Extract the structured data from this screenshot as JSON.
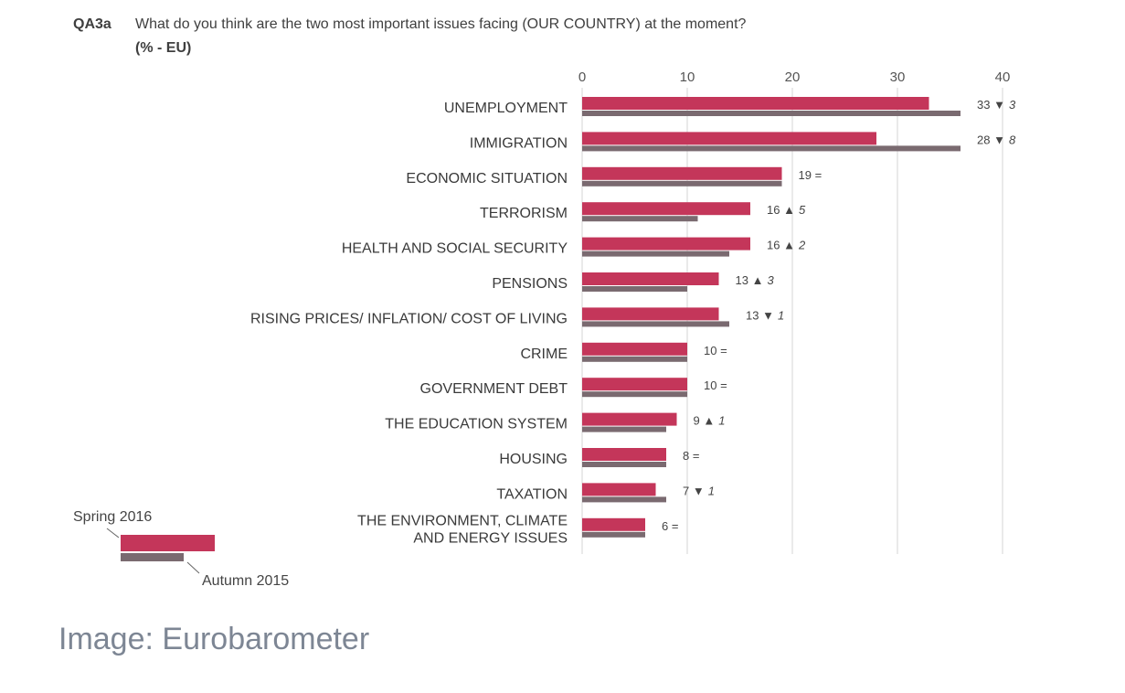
{
  "header": {
    "code": "QA3a",
    "question": "What do you think are the two most important issues facing (OUR COUNTRY) at the moment?",
    "subtitle": "(% - EU)"
  },
  "caption": "Image: Eurobarometer",
  "colors": {
    "spring": "#c4365a",
    "autumn": "#7a6a70",
    "grid": "#d6d6d6"
  },
  "legend": {
    "spring_label": "Spring 2016",
    "autumn_label": "Autumn 2015"
  },
  "chart_data": {
    "type": "bar",
    "orientation": "horizontal",
    "xlim": [
      0,
      40
    ],
    "xticks": [
      0,
      10,
      20,
      30,
      40
    ],
    "grid": true,
    "legend_position": "bottom-left",
    "categories": [
      [
        "UNEMPLOYMENT"
      ],
      [
        "IMMIGRATION"
      ],
      [
        "ECONOMIC SITUATION"
      ],
      [
        "TERRORISM"
      ],
      [
        "HEALTH AND SOCIAL SECURITY"
      ],
      [
        "PENSIONS"
      ],
      [
        "RISING PRICES/ INFLATION/ COST OF LIVING"
      ],
      [
        "CRIME"
      ],
      [
        "GOVERNMENT DEBT"
      ],
      [
        "THE EDUCATION SYSTEM"
      ],
      [
        "HOUSING"
      ],
      [
        "TAXATION"
      ],
      [
        "THE ENVIRONMENT, CLIMATE",
        "AND ENERGY ISSUES"
      ]
    ],
    "series": [
      {
        "name": "Spring 2016",
        "values": [
          33,
          28,
          19,
          16,
          16,
          13,
          13,
          10,
          10,
          9,
          8,
          7,
          6
        ]
      },
      {
        "name": "Autumn 2015",
        "values": [
          36,
          36,
          19,
          11,
          14,
          10,
          14,
          10,
          10,
          8,
          8,
          8,
          6
        ]
      }
    ],
    "labels": [
      {
        "value": "33",
        "arrow": "▼",
        "change": "3"
      },
      {
        "value": "28",
        "arrow": "▼",
        "change": "8"
      },
      {
        "value": "19",
        "arrow": "=",
        "change": ""
      },
      {
        "value": "16",
        "arrow": "▲",
        "change": "5"
      },
      {
        "value": "16",
        "arrow": "▲",
        "change": "2"
      },
      {
        "value": "13",
        "arrow": "▲",
        "change": "3"
      },
      {
        "value": "13",
        "arrow": "▼",
        "change": "1"
      },
      {
        "value": "10",
        "arrow": "=",
        "change": ""
      },
      {
        "value": "10",
        "arrow": "=",
        "change": ""
      },
      {
        "value": "9",
        "arrow": "▲",
        "change": "1"
      },
      {
        "value": "8",
        "arrow": "=",
        "change": ""
      },
      {
        "value": "7",
        "arrow": "▼",
        "change": "1"
      },
      {
        "value": "6",
        "arrow": "=",
        "change": ""
      }
    ]
  }
}
